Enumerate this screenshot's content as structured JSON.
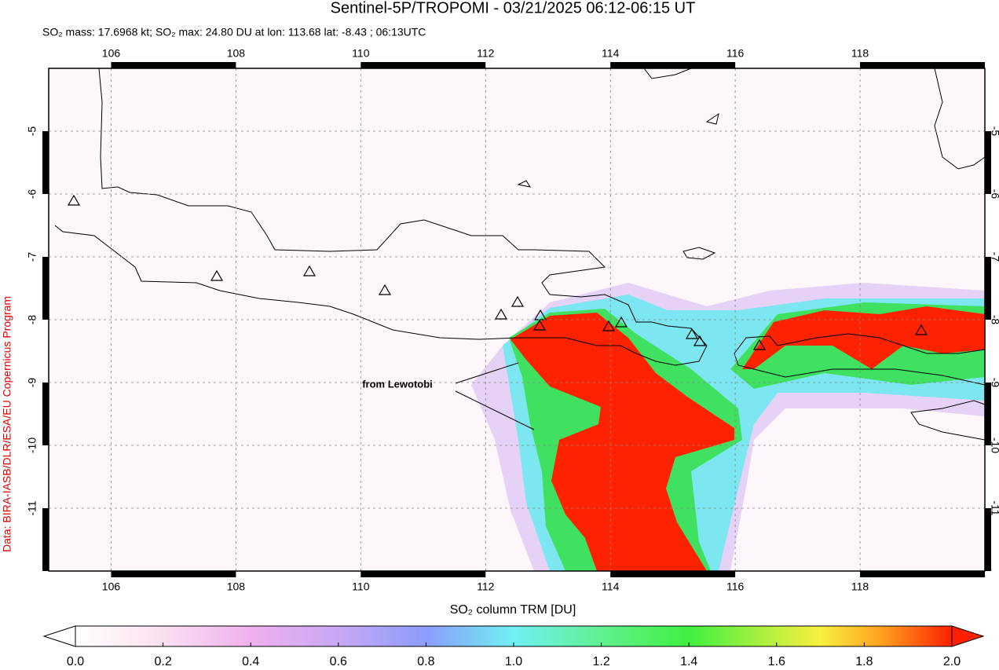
{
  "header": {
    "title": "Sentinel-5P/TROPOMI - 03/21/2025 06:12-06:15 UT",
    "subtitle": "SO₂ mass: 17.6968 kt; SO₂ max: 24.80 DU at lon: 113.68 lat: -8.43 ; 06:13UTC"
  },
  "map": {
    "xlim": [
      105,
      120
    ],
    "ylim": [
      -12,
      -4
    ],
    "xticks": [
      106,
      108,
      110,
      112,
      114,
      116,
      118
    ],
    "yticks": [
      -5,
      -6,
      -7,
      -8,
      -9,
      -10,
      -11
    ],
    "annotation": "from Lewotobi"
  },
  "colorbar": {
    "label": "SO₂ column TRM [DU]",
    "lim": [
      0,
      2
    ],
    "ticks": [
      {
        "value": 0,
        "label": "0.0"
      },
      {
        "value": 0.2,
        "label": "0.2"
      },
      {
        "value": 0.4,
        "label": "0.4"
      },
      {
        "value": 0.6,
        "label": "0.6"
      },
      {
        "value": 0.8,
        "label": "0.8"
      },
      {
        "value": 1,
        "label": "1.0"
      },
      {
        "value": 1.2,
        "label": "1.2"
      },
      {
        "value": 1.4,
        "label": "1.4"
      },
      {
        "value": 1.6,
        "label": "1.6"
      },
      {
        "value": 1.8,
        "label": "1.8"
      },
      {
        "value": 2,
        "label": "2.0"
      }
    ]
  },
  "credit": "Data: BIRA-IASB/DLR/ESA/EU Copernicus Program"
}
